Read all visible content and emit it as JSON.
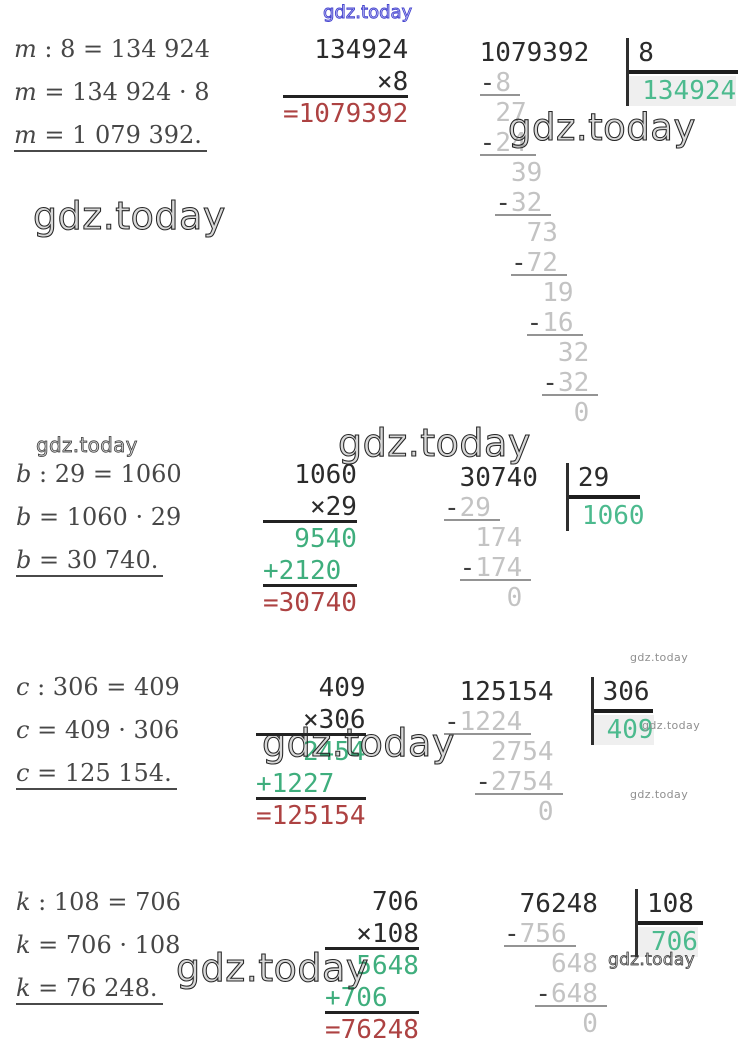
{
  "watermark": {
    "text": "gdz.today"
  },
  "colors": {
    "accent_green": "#3fae7d",
    "quotient_green": "#4cba8e",
    "result_red": "#ad4242",
    "watermark_blue": "#4847d6",
    "faint_step_gray": "#c3c3c3",
    "ink": "#2b2b2b"
  },
  "problems": [
    {
      "equations": [
        {
          "variable": "m",
          "rest": " : 8 = 134 924",
          "underline": false
        },
        {
          "variable": "m",
          "rest": " = 134 924 · 8",
          "underline": false
        },
        {
          "variable": "m",
          "rest": " = 1 079 392.",
          "underline": true
        }
      ],
      "multiplication": {
        "lines": [
          {
            "text": "  134924",
            "color": "ink",
            "rule": false
          },
          {
            "text": "      ×8",
            "color": "ink",
            "rule": true
          },
          {
            "text": "=1079392",
            "color": "red",
            "rule": false
          }
        ]
      },
      "division": {
        "dividend": " 1079392",
        "divisor": "8",
        "quotient": "134924",
        "steps": [
          {
            "text": "-8",
            "indent": 1,
            "underline": true
          },
          {
            "text": "27",
            "indent": 2,
            "underline": false
          },
          {
            "text": "-24",
            "indent": 1,
            "underline": true
          },
          {
            "text": "39",
            "indent": 3,
            "underline": false
          },
          {
            "text": "-32",
            "indent": 2,
            "underline": true
          },
          {
            "text": "73",
            "indent": 4,
            "underline": false
          },
          {
            "text": "-72",
            "indent": 3,
            "underline": true
          },
          {
            "text": "19",
            "indent": 5,
            "underline": false
          },
          {
            "text": "-16",
            "indent": 4,
            "underline": true
          },
          {
            "text": "32",
            "indent": 6,
            "underline": false
          },
          {
            "text": "-32",
            "indent": 5,
            "underline": true
          },
          {
            "text": "0",
            "indent": 7,
            "underline": false
          }
        ]
      }
    },
    {
      "equations": [
        {
          "variable": "b",
          "rest": " : 29 = 1060",
          "underline": false
        },
        {
          "variable": "b",
          "rest": " = 1060 · 29",
          "underline": false
        },
        {
          "variable": "b",
          "rest": " = 30 740.",
          "underline": true
        }
      ],
      "multiplication": {
        "lines": [
          {
            "text": "  1060",
            "color": "ink",
            "rule": false
          },
          {
            "text": "   ×29",
            "color": "ink",
            "rule": true
          },
          {
            "text": "  9540",
            "color": "green",
            "rule": false
          },
          {
            "text": "+2120 ",
            "color": "green",
            "rule": true
          },
          {
            "text": "=30740",
            "color": "red",
            "rule": false
          }
        ]
      },
      "division": {
        "dividend": " 30740",
        "divisor": "29",
        "quotient": "1060",
        "steps": [
          {
            "text": "-29",
            "indent": 0,
            "underline": true
          },
          {
            "text": "174",
            "indent": 2,
            "underline": false
          },
          {
            "text": "-174",
            "indent": 1,
            "underline": true
          },
          {
            "text": "0",
            "indent": 4,
            "underline": false
          }
        ]
      }
    },
    {
      "equations": [
        {
          "variable": "c",
          "rest": " : 306 = 409",
          "underline": false
        },
        {
          "variable": "c",
          "rest": " = 409 · 306",
          "underline": false
        },
        {
          "variable": "c",
          "rest": " = 125 154.",
          "underline": true
        }
      ],
      "multiplication": {
        "lines": [
          {
            "text": "    409",
            "color": "ink",
            "rule": false
          },
          {
            "text": "   ×306",
            "color": "ink",
            "rule": true
          },
          {
            "text": "   2454",
            "color": "green",
            "rule": false
          },
          {
            "text": "+1227  ",
            "color": "green",
            "rule": true
          },
          {
            "text": "=125154",
            "color": "red",
            "rule": false
          }
        ]
      },
      "division": {
        "dividend": " 125154",
        "divisor": "306",
        "quotient": "409",
        "steps": [
          {
            "text": "-1224",
            "indent": 0,
            "underline": true
          },
          {
            "text": "2754",
            "indent": 3,
            "underline": false
          },
          {
            "text": "-2754",
            "indent": 2,
            "underline": true
          },
          {
            "text": "0",
            "indent": 6,
            "underline": false
          }
        ]
      }
    },
    {
      "equations": [
        {
          "variable": "k",
          "rest": " : 108 = 706",
          "underline": false
        },
        {
          "variable": "k",
          "rest": " = 706 · 108",
          "underline": false
        },
        {
          "variable": "k",
          "rest": " = 76 248.",
          "underline": true
        }
      ],
      "multiplication": {
        "lines": [
          {
            "text": "   706",
            "color": "ink",
            "rule": false
          },
          {
            "text": "  ×108",
            "color": "ink",
            "rule": true
          },
          {
            "text": "  5648",
            "color": "green",
            "rule": false
          },
          {
            "text": "+706  ",
            "color": "green",
            "rule": true
          },
          {
            "text": "=76248",
            "color": "red",
            "rule": false
          }
        ]
      },
      "division": {
        "dividend": " 76248",
        "divisor": "108",
        "quotient": "706",
        "steps": [
          {
            "text": "-756",
            "indent": 0,
            "underline": true
          },
          {
            "text": "648",
            "indent": 3,
            "underline": false
          },
          {
            "text": "-648",
            "indent": 2,
            "underline": true
          },
          {
            "text": "0",
            "indent": 5,
            "underline": false
          }
        ]
      }
    }
  ]
}
